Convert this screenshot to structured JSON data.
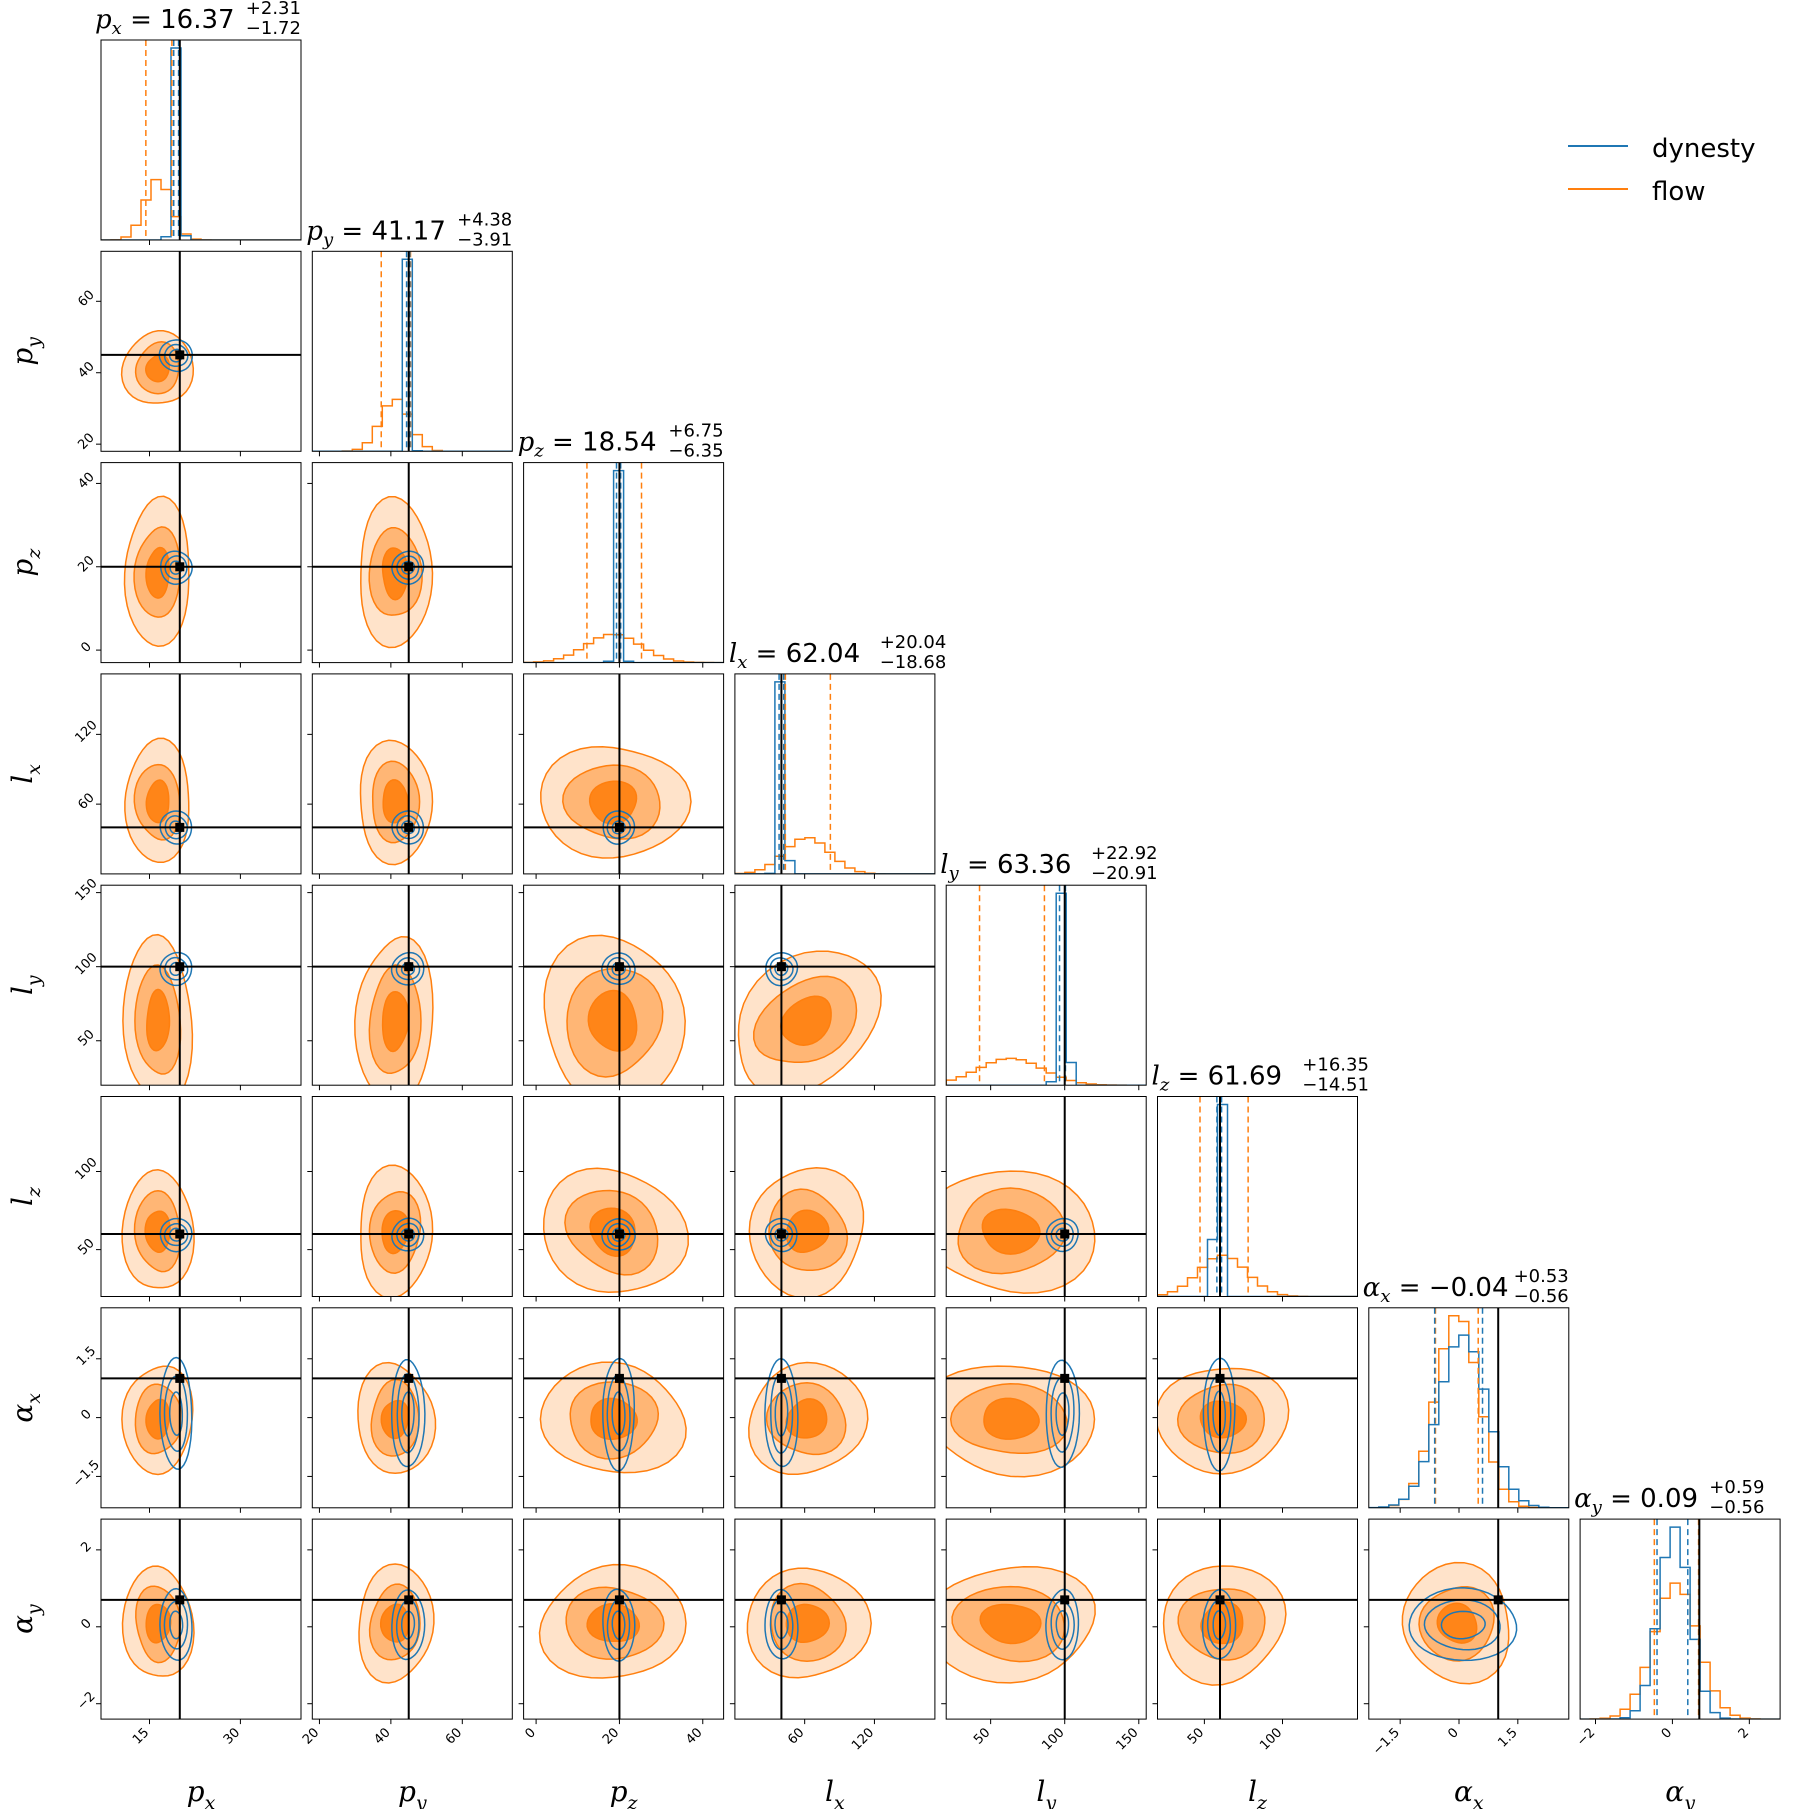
{
  "chart_data": {
    "type": "corner",
    "title": "",
    "legend": {
      "placement": "top-right",
      "entries": [
        {
          "label": "dynesty",
          "color": "#1f77b4"
        },
        {
          "label": "flow",
          "color": "#ff7f0e"
        }
      ]
    },
    "truth_color": "#000000",
    "parameters": [
      {
        "key": "px",
        "sym": "p",
        "sub": "x",
        "value": "16.37",
        "plus": "+2.31",
        "minus": "−1.72",
        "range": [
          7,
          40
        ],
        "ticks": [
          15,
          30
        ],
        "truth": 20,
        "flow": {
          "q": [
            14.4,
            16.4,
            18.7
          ]
        },
        "dynesty": {
          "q": [
            19.0,
            19.4,
            19.8
          ]
        }
      },
      {
        "key": "py",
        "sym": "p",
        "sub": "y",
        "value": "41.17",
        "plus": "+4.38",
        "minus": "−3.91",
        "range": [
          18,
          74
        ],
        "ticks": [
          20,
          40,
          60
        ],
        "truth": 45,
        "flow": {
          "q": [
            37.3,
            41.2,
            45.5
          ]
        },
        "dynesty": {
          "q": [
            44.4,
            44.8,
            45.3
          ]
        }
      },
      {
        "key": "pz",
        "sym": "p",
        "sub": "z",
        "value": "18.54",
        "plus": "+6.75",
        "minus": "−6.35",
        "range": [
          -3,
          45
        ],
        "ticks": [
          0,
          20,
          40
        ],
        "truth": 20,
        "flow": {
          "q": [
            12.2,
            18.5,
            25.3
          ]
        },
        "dynesty": {
          "q": [
            19.3,
            19.8,
            20.3
          ]
        }
      },
      {
        "key": "lx",
        "sym": "l",
        "sub": "x",
        "value": "62.04",
        "plus": "+20.04",
        "minus": "−18.68",
        "range": [
          0,
          172
        ],
        "ticks": [
          60,
          120
        ],
        "truth": 40,
        "flow": {
          "q": [
            43.4,
            62.0,
            82.1
          ]
        },
        "dynesty": {
          "q": [
            38.0,
            40.0,
            42.0
          ]
        }
      },
      {
        "key": "ly",
        "sym": "l",
        "sub": "y",
        "value": "63.36",
        "plus": "+22.92",
        "minus": "−20.91",
        "range": [
          20,
          155
        ],
        "ticks": [
          50,
          100,
          150
        ],
        "truth": 100,
        "flow": {
          "q": [
            42.5,
            63.4,
            86.3
          ]
        },
        "dynesty": {
          "q": [
            96.5,
            98.5,
            100.5
          ]
        }
      },
      {
        "key": "lz",
        "sym": "l",
        "sub": "z",
        "value": "61.69",
        "plus": "+16.35",
        "minus": "−14.51",
        "range": [
          20,
          148
        ],
        "ticks": [
          50,
          100
        ],
        "truth": 60,
        "flow": {
          "q": [
            47.2,
            61.7,
            78.0
          ]
        },
        "dynesty": {
          "q": [
            58.0,
            59.5,
            61.0
          ]
        }
      },
      {
        "key": "ax",
        "sym": "α",
        "sub": "x",
        "value": "−0.04",
        "plus": "+0.53",
        "minus": "−0.56",
        "range": [
          -2.3,
          2.8
        ],
        "ticks": [
          -1.5,
          0.0,
          1.5
        ],
        "truth": 1.0,
        "flow": {
          "q": [
            -0.6,
            -0.04,
            0.49
          ]
        },
        "dynesty": {
          "q": [
            -0.62,
            0.1,
            0.6
          ]
        }
      },
      {
        "key": "ay",
        "sym": "α",
        "sub": "y",
        "value": "0.09",
        "plus": "+0.59",
        "minus": "−0.56",
        "range": [
          -2.4,
          2.8
        ],
        "ticks": [
          -2,
          0,
          2
        ],
        "truth": 0.7,
        "flow": {
          "q": [
            -0.47,
            0.09,
            0.68
          ]
        },
        "dynesty": {
          "q": [
            -0.4,
            0.05,
            0.4
          ]
        }
      }
    ]
  }
}
